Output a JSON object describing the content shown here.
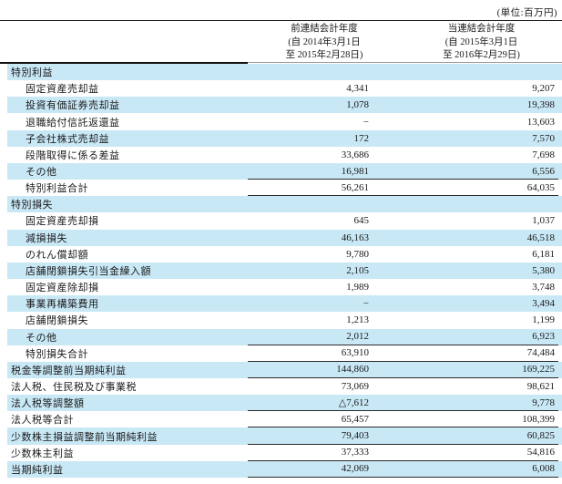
{
  "unit_label": "(単位:百万円)",
  "table": {
    "columns": [
      {
        "title": "前連結会計年度",
        "period_from": "(自 2014年3月1日",
        "period_to": "至 2015年2月28日)"
      },
      {
        "title": "当連結会計年度",
        "period_from": "(自 2015年3月1日",
        "period_to": "至 2016年2月29日)"
      }
    ],
    "accent_color": "#c9e8f6",
    "rows": [
      {
        "label": "特別利益",
        "indent": 0,
        "prev": "",
        "cur": "",
        "bg": "blue",
        "rule": false
      },
      {
        "label": "固定資産売却益",
        "indent": 1,
        "prev": "4,341",
        "cur": "9,207",
        "bg": "white",
        "rule": false
      },
      {
        "label": "投資有価証券売却益",
        "indent": 1,
        "prev": "1,078",
        "cur": "19,398",
        "bg": "blue",
        "rule": false
      },
      {
        "label": "退職給付信託返還益",
        "indent": 1,
        "prev": "−",
        "cur": "13,603",
        "bg": "white",
        "rule": false
      },
      {
        "label": "子会社株式売却益",
        "indent": 1,
        "prev": "172",
        "cur": "7,570",
        "bg": "blue",
        "rule": false
      },
      {
        "label": "段階取得に係る差益",
        "indent": 1,
        "prev": "33,686",
        "cur": "7,698",
        "bg": "white",
        "rule": false
      },
      {
        "label": "その他",
        "indent": 1,
        "prev": "16,981",
        "cur": "6,556",
        "bg": "blue",
        "rule": true
      },
      {
        "label": "特別利益合計",
        "indent": 1,
        "prev": "56,261",
        "cur": "64,035",
        "bg": "white",
        "rule": true
      },
      {
        "label": "特別損失",
        "indent": 0,
        "prev": "",
        "cur": "",
        "bg": "blue",
        "rule": false
      },
      {
        "label": "固定資産売却損",
        "indent": 1,
        "prev": "645",
        "cur": "1,037",
        "bg": "white",
        "rule": false
      },
      {
        "label": "減損損失",
        "indent": 1,
        "prev": "46,163",
        "cur": "46,518",
        "bg": "blue",
        "rule": false
      },
      {
        "label": "のれん償却額",
        "indent": 1,
        "prev": "9,780",
        "cur": "6,181",
        "bg": "white",
        "rule": false
      },
      {
        "label": "店舗閉鎖損失引当金繰入額",
        "indent": 1,
        "prev": "2,105",
        "cur": "5,380",
        "bg": "blue",
        "rule": false
      },
      {
        "label": "固定資産除却損",
        "indent": 1,
        "prev": "1,989",
        "cur": "3,748",
        "bg": "white",
        "rule": false
      },
      {
        "label": "事業再構築費用",
        "indent": 1,
        "prev": "−",
        "cur": "3,494",
        "bg": "blue",
        "rule": false
      },
      {
        "label": "店舗閉鎖損失",
        "indent": 1,
        "prev": "1,213",
        "cur": "1,199",
        "bg": "white",
        "rule": false
      },
      {
        "label": "その他",
        "indent": 1,
        "prev": "2,012",
        "cur": "6,923",
        "bg": "blue",
        "rule": true
      },
      {
        "label": "特別損失合計",
        "indent": 1,
        "prev": "63,910",
        "cur": "74,484",
        "bg": "white",
        "rule": true
      },
      {
        "label": "税金等調整前当期純利益",
        "indent": 0,
        "prev": "144,860",
        "cur": "169,225",
        "bg": "blue",
        "rule": true
      },
      {
        "label": "法人税、住民税及び事業税",
        "indent": 0,
        "prev": "73,069",
        "cur": "98,621",
        "bg": "white",
        "rule": false
      },
      {
        "label": "法人税等調整額",
        "indent": 0,
        "prev": "△7,612",
        "cur": "9,778",
        "bg": "blue",
        "rule": true
      },
      {
        "label": "法人税等合計",
        "indent": 0,
        "prev": "65,457",
        "cur": "108,399",
        "bg": "white",
        "rule": true
      },
      {
        "label": "少数株主損益調整前当期純利益",
        "indent": 0,
        "prev": "79,403",
        "cur": "60,825",
        "bg": "blue",
        "rule": true
      },
      {
        "label": "少数株主利益",
        "indent": 0,
        "prev": "37,333",
        "cur": "54,816",
        "bg": "white",
        "rule": true
      },
      {
        "label": "当期純利益",
        "indent": 0,
        "prev": "42,069",
        "cur": "6,008",
        "bg": "blue",
        "rule": true
      }
    ]
  }
}
